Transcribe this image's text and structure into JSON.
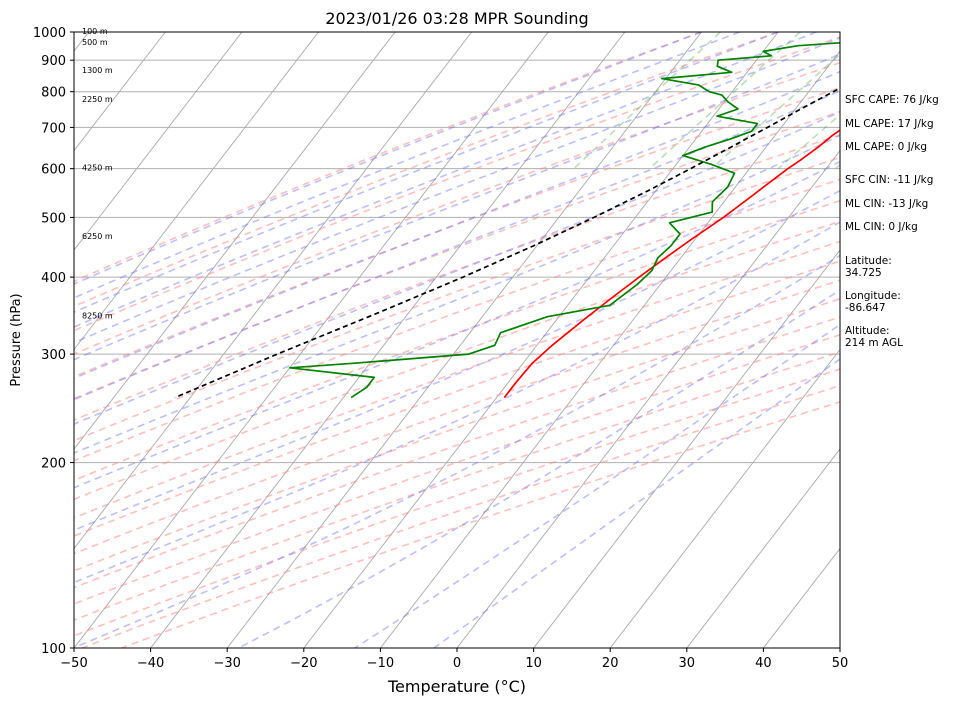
{
  "chart_data": {
    "type": "skew-t sounding",
    "title": "2023/01/26 03:28 MPR Sounding",
    "xlabel": "Temperature (°C)",
    "ylabel": "Pressure (hPa)",
    "xlim": [
      -50,
      50
    ],
    "ylim": [
      1000,
      100
    ],
    "y_scale": "log",
    "x_ticks": [
      "−50",
      "−40",
      "−30",
      "−20",
      "−10",
      "0",
      "10",
      "20",
      "30",
      "40",
      "50"
    ],
    "y_ticks": [
      "100",
      "200",
      "300",
      "400",
      "500",
      "600",
      "700",
      "800",
      "900",
      "1000"
    ],
    "height_labels": [
      {
        "pressure": 1000,
        "label": "100 m"
      },
      {
        "pressure": 960,
        "label": "500 m"
      },
      {
        "pressure": 865,
        "label": "1300 m"
      },
      {
        "pressure": 775,
        "label": "2250 m"
      },
      {
        "pressure": 600,
        "label": "4250 m"
      },
      {
        "pressure": 465,
        "label": "6250 m"
      },
      {
        "pressure": 345,
        "label": "8250 m"
      }
    ],
    "series": [
      {
        "kind": "temperature",
        "color": "#ff0000",
        "points": [
          [
            1000,
            5.0
          ],
          [
            990,
            4.5
          ],
          [
            970,
            2.5
          ],
          [
            950,
            -0.5
          ],
          [
            930,
            -2.5
          ],
          [
            910,
            -3.0
          ],
          [
            890,
            -3.2
          ],
          [
            870,
            -3.0
          ],
          [
            850,
            -2.4
          ],
          [
            820,
            -1.8
          ],
          [
            790,
            -1.6
          ],
          [
            760,
            -1.6
          ],
          [
            730,
            -1.7
          ],
          [
            700,
            -1.8
          ],
          [
            680,
            -2.5
          ],
          [
            650,
            -3.2
          ],
          [
            620,
            -4.2
          ],
          [
            600,
            -5.0
          ],
          [
            570,
            -6.0
          ],
          [
            540,
            -7.0
          ],
          [
            500,
            -8.5
          ],
          [
            460,
            -10.5
          ],
          [
            430,
            -12.0
          ],
          [
            400,
            -13.5
          ],
          [
            370,
            -15.0
          ],
          [
            340,
            -16.5
          ],
          [
            310,
            -18.0
          ],
          [
            290,
            -18.8
          ],
          [
            270,
            -19.0
          ],
          [
            255,
            -19.0
          ]
        ]
      },
      {
        "kind": "dewpoint",
        "color": "#008000",
        "points": [
          [
            1000,
            2.0
          ],
          [
            990,
            -2.0
          ],
          [
            970,
            -6.0
          ],
          [
            950,
            -16.0
          ],
          [
            930,
            -20.0
          ],
          [
            915,
            -18.5
          ],
          [
            900,
            -25.0
          ],
          [
            880,
            -24.5
          ],
          [
            860,
            -22.0
          ],
          [
            840,
            -30.5
          ],
          [
            820,
            -25.0
          ],
          [
            800,
            -23.0
          ],
          [
            790,
            -21.0
          ],
          [
            770,
            -19.5
          ],
          [
            750,
            -17.5
          ],
          [
            730,
            -19.5
          ],
          [
            710,
            -13.5
          ],
          [
            690,
            -13.5
          ],
          [
            670,
            -15.5
          ],
          [
            650,
            -18.0
          ],
          [
            630,
            -20.0
          ],
          [
            610,
            -15.5
          ],
          [
            590,
            -11.5
          ],
          [
            560,
            -11.0
          ],
          [
            530,
            -11.5
          ],
          [
            510,
            -10.5
          ],
          [
            490,
            -15.0
          ],
          [
            470,
            -12.5
          ],
          [
            450,
            -12.5
          ],
          [
            430,
            -13.0
          ],
          [
            410,
            -12.5
          ],
          [
            390,
            -13.0
          ],
          [
            360,
            -14.5
          ],
          [
            345,
            -21.5
          ],
          [
            325,
            -26.0
          ],
          [
            310,
            -25.5
          ],
          [
            300,
            -28.0
          ],
          [
            290,
            -42.0
          ],
          [
            285,
            -50.0
          ],
          [
            275,
            -38.0
          ],
          [
            265,
            -38.0
          ],
          [
            255,
            -39.0
          ]
        ]
      },
      {
        "kind": "parcel",
        "color": "#000000",
        "points": [
          [
            1000,
            5.0
          ],
          [
            950,
            1.0
          ],
          [
            900,
            -2.0
          ],
          [
            850,
            -4.5
          ],
          [
            800,
            -6.8
          ],
          [
            750,
            -9.3
          ],
          [
            700,
            -11.8
          ],
          [
            650,
            -14.6
          ],
          [
            600,
            -17.7
          ],
          [
            550,
            -21.2
          ],
          [
            500,
            -25.4
          ],
          [
            450,
            -30.4
          ],
          [
            400,
            -36.5
          ],
          [
            350,
            -44.0
          ],
          [
            300,
            -53.0
          ],
          [
            255,
            -62.0
          ]
        ]
      }
    ],
    "annotations": [
      "SFC CAPE: 76 J/kg",
      "ML CAPE: 17 J/kg",
      "ML CAPE: 0 J/kg",
      "SFC CIN: -11 J/kg",
      "ML CIN: -13 J/kg",
      "ML CIN: 0 J/kg",
      "Latitude:\n34.725",
      "Longitude:\n-86.647",
      "Altitude:\n214 m AGL"
    ],
    "grid": true
  }
}
